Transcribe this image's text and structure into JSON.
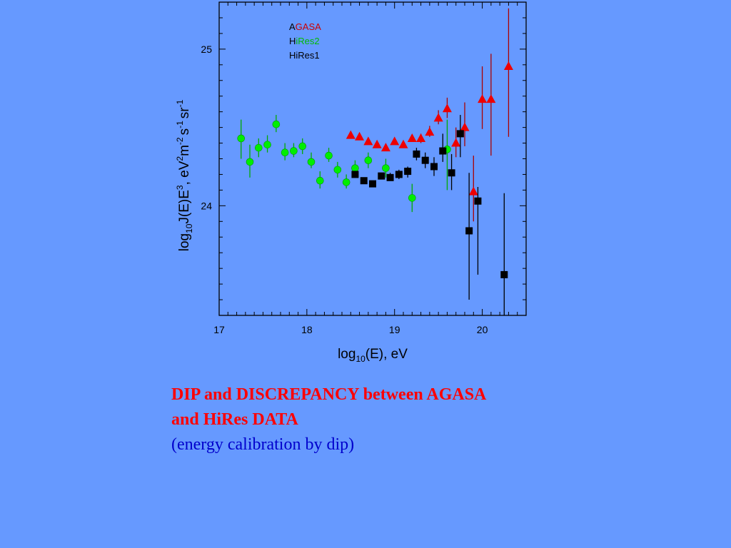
{
  "chart_data": {
    "type": "scatter",
    "xlabel": {
      "base": "log",
      "sub": "10",
      "rest": "(E), eV"
    },
    "ylabel": {
      "p1": "log",
      "s1": "10",
      "p2": "J(E)E",
      "s2": "3",
      "p3": ", eV",
      "s3": "2",
      "p4": "m",
      "s4": "-2",
      "p5": "s",
      "s5": "-1",
      "p6": "sr",
      "s6": "-1"
    },
    "xlim": [
      17.0,
      20.5
    ],
    "ylim": [
      23.3,
      25.3
    ],
    "x_ticks": [
      "17",
      "18",
      "19",
      "20"
    ],
    "y_ticks": [
      "24",
      "25"
    ],
    "x_tick_values": [
      17,
      18,
      19,
      20
    ],
    "y_tick_values": [
      24,
      25
    ],
    "grid": false,
    "legend_position": "top-left",
    "legend": [
      {
        "first": "A",
        "rest": "GASA",
        "color": "#cc0000"
      },
      {
        "first": "H",
        "rest": "iRes2",
        "color": "#00bb00"
      },
      {
        "first": "",
        "rest": "HiRes1",
        "color": "#000000"
      }
    ],
    "series": [
      {
        "key": "AGASA",
        "marker": "triangle",
        "color": "#ee0000",
        "errcolor": "#aa0000",
        "points": [
          {
            "x": 18.5,
            "y": 24.45,
            "lo": 24.45,
            "hi": 24.45
          },
          {
            "x": 18.6,
            "y": 24.44,
            "lo": 24.44,
            "hi": 24.44
          },
          {
            "x": 18.7,
            "y": 24.41,
            "lo": 24.41,
            "hi": 24.41
          },
          {
            "x": 18.8,
            "y": 24.39,
            "lo": 24.39,
            "hi": 24.39
          },
          {
            "x": 18.9,
            "y": 24.37,
            "lo": 24.37,
            "hi": 24.37
          },
          {
            "x": 19.0,
            "y": 24.41,
            "lo": 24.41,
            "hi": 24.41
          },
          {
            "x": 19.1,
            "y": 24.39,
            "lo": 24.39,
            "hi": 24.39
          },
          {
            "x": 19.2,
            "y": 24.43,
            "lo": 24.41,
            "hi": 24.45
          },
          {
            "x": 19.3,
            "y": 24.43,
            "lo": 24.4,
            "hi": 24.46
          },
          {
            "x": 19.4,
            "y": 24.47,
            "lo": 24.44,
            "hi": 24.51
          },
          {
            "x": 19.5,
            "y": 24.56,
            "lo": 24.52,
            "hi": 24.61
          },
          {
            "x": 19.6,
            "y": 24.62,
            "lo": 24.56,
            "hi": 24.69
          },
          {
            "x": 19.7,
            "y": 24.4,
            "lo": 24.31,
            "hi": 24.5
          },
          {
            "x": 19.8,
            "y": 24.5,
            "lo": 24.38,
            "hi": 24.66
          },
          {
            "x": 19.9,
            "y": 24.09,
            "lo": 23.9,
            "hi": 24.32
          },
          {
            "x": 20.0,
            "y": 24.68,
            "lo": 24.49,
            "hi": 24.89
          },
          {
            "x": 20.1,
            "y": 24.68,
            "lo": 24.32,
            "hi": 24.97
          },
          {
            "x": 20.3,
            "y": 24.89,
            "lo": 24.44,
            "hi": 25.26
          }
        ]
      },
      {
        "key": "HiRes2",
        "marker": "circle",
        "color": "#00ee00",
        "errcolor": "#00aa00",
        "points": [
          {
            "x": 17.25,
            "y": 24.43,
            "lo": 24.3,
            "hi": 24.55
          },
          {
            "x": 17.35,
            "y": 24.28,
            "lo": 24.18,
            "hi": 24.39
          },
          {
            "x": 17.45,
            "y": 24.37,
            "lo": 24.31,
            "hi": 24.43
          },
          {
            "x": 17.55,
            "y": 24.39,
            "lo": 24.34,
            "hi": 24.45
          },
          {
            "x": 17.65,
            "y": 24.52,
            "lo": 24.47,
            "hi": 24.58
          },
          {
            "x": 17.75,
            "y": 24.34,
            "lo": 24.29,
            "hi": 24.4
          },
          {
            "x": 17.85,
            "y": 24.35,
            "lo": 24.31,
            "hi": 24.4
          },
          {
            "x": 17.95,
            "y": 24.38,
            "lo": 24.33,
            "hi": 24.43
          },
          {
            "x": 18.05,
            "y": 24.28,
            "lo": 24.24,
            "hi": 24.34
          },
          {
            "x": 18.15,
            "y": 24.16,
            "lo": 24.11,
            "hi": 24.22
          },
          {
            "x": 18.25,
            "y": 24.32,
            "lo": 24.28,
            "hi": 24.37
          },
          {
            "x": 18.35,
            "y": 24.23,
            "lo": 24.18,
            "hi": 24.28
          },
          {
            "x": 18.45,
            "y": 24.15,
            "lo": 24.11,
            "hi": 24.2
          },
          {
            "x": 18.55,
            "y": 24.24,
            "lo": 24.2,
            "hi": 24.29
          },
          {
            "x": 18.7,
            "y": 24.29,
            "lo": 24.24,
            "hi": 24.34
          },
          {
            "x": 18.9,
            "y": 24.24,
            "lo": 24.18,
            "hi": 24.3
          },
          {
            "x": 19.2,
            "y": 24.05,
            "lo": 23.96,
            "hi": 24.14
          },
          {
            "x": 19.6,
            "y": 24.36,
            "lo": 24.1,
            "hi": 24.55
          }
        ]
      },
      {
        "key": "HiRes1",
        "marker": "square",
        "color": "#000000",
        "errcolor": "#000000",
        "points": [
          {
            "x": 18.55,
            "y": 24.2,
            "lo": 24.18,
            "hi": 24.22
          },
          {
            "x": 18.65,
            "y": 24.16,
            "lo": 24.14,
            "hi": 24.18
          },
          {
            "x": 18.75,
            "y": 24.14,
            "lo": 24.12,
            "hi": 24.16
          },
          {
            "x": 18.85,
            "y": 24.19,
            "lo": 24.17,
            "hi": 24.21
          },
          {
            "x": 18.95,
            "y": 24.18,
            "lo": 24.16,
            "hi": 24.21
          },
          {
            "x": 19.05,
            "y": 24.2,
            "lo": 24.17,
            "hi": 24.23
          },
          {
            "x": 19.15,
            "y": 24.22,
            "lo": 24.18,
            "hi": 24.25
          },
          {
            "x": 19.25,
            "y": 24.33,
            "lo": 24.29,
            "hi": 24.37
          },
          {
            "x": 19.35,
            "y": 24.29,
            "lo": 24.24,
            "hi": 24.34
          },
          {
            "x": 19.45,
            "y": 24.25,
            "lo": 24.19,
            "hi": 24.31
          },
          {
            "x": 19.55,
            "y": 24.35,
            "lo": 24.28,
            "hi": 24.46
          },
          {
            "x": 19.65,
            "y": 24.21,
            "lo": 24.1,
            "hi": 24.33
          },
          {
            "x": 19.75,
            "y": 24.46,
            "lo": 24.31,
            "hi": 24.58
          },
          {
            "x": 19.85,
            "y": 23.84,
            "lo": 23.4,
            "hi": 24.21
          },
          {
            "x": 19.95,
            "y": 24.03,
            "lo": 23.56,
            "hi": 24.12
          },
          {
            "x": 20.25,
            "y": 23.56,
            "lo": 23.3,
            "hi": 24.08
          }
        ]
      }
    ]
  },
  "caption": {
    "line1": "DIP and DISCREPANCY between AGASA",
    "line2": "and HiRes DATA",
    "line3": "(energy calibration by dip)"
  }
}
